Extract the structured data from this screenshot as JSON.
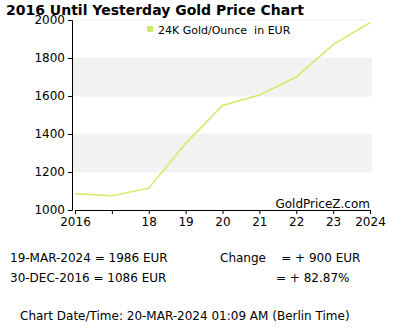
{
  "chart_data": {
    "type": "line",
    "title": "2016 Until Yesterday Gold Price Chart",
    "categories": [
      "2016",
      null,
      "18",
      "19",
      "20",
      "21",
      "22",
      "23",
      "2024"
    ],
    "series": [
      {
        "name": "24K Gold/Ounce  in EUR",
        "color": "#ccee66",
        "values": [
          1086,
          1075,
          1115,
          1350,
          1550,
          1605,
          1700,
          1870,
          1986
        ]
      }
    ],
    "ylim": [
      1000,
      2000
    ],
    "yticks": [
      1000,
      1200,
      1400,
      1600,
      1800,
      2000
    ],
    "grid": true,
    "legend": "top",
    "watermark": "GoldPriceZ.com",
    "annotations": [
      "19-MAR-2024 = 1986 EUR",
      "30-DEC-2016 = 1086 EUR",
      "Change    = + 900 EUR",
      "= + 82.87%"
    ],
    "footer": "Chart Date/Time: 20-MAR-2024 01:09 AM (Berlin Time)"
  }
}
